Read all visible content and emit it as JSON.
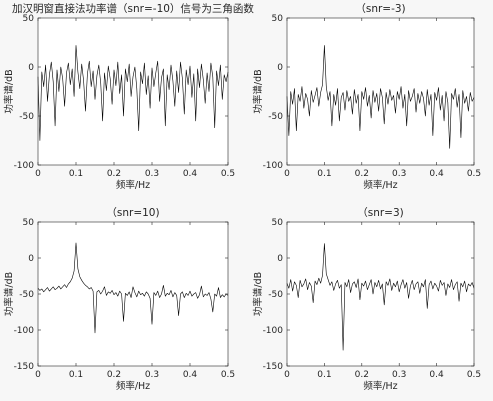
{
  "style": {
    "figure_background": "#f7f7f7",
    "axes_background": "#ffffff",
    "axis_color": "#262626"
  },
  "chart_data": [
    {
      "type": "line",
      "title": "加汉明窗直接法功率谱（snr=-10）信号为三角函数",
      "xlabel": "频率/Hz",
      "ylabel": "功率谱/dB",
      "xlim": [
        0,
        0.5
      ],
      "ylim": [
        -100,
        50
      ],
      "xticks": [
        0,
        0.1,
        0.2,
        0.3,
        0.4,
        0.5
      ],
      "xtick_labels": [
        "0",
        "0.1",
        "0.2",
        "0.3",
        "0.4",
        "0.5"
      ],
      "yticks": [
        50,
        0,
        -50,
        -100
      ],
      "ytick_labels": [
        "50",
        "0",
        "-50",
        "-100"
      ],
      "grid": false,
      "line_color": "#000000",
      "x": [
        0,
        0.005,
        0.01,
        0.015,
        0.02,
        0.025,
        0.03,
        0.035,
        0.04,
        0.045,
        0.05,
        0.055,
        0.06,
        0.065,
        0.07,
        0.075,
        0.08,
        0.085,
        0.09,
        0.095,
        0.1,
        0.105,
        0.11,
        0.115,
        0.12,
        0.125,
        0.13,
        0.135,
        0.14,
        0.145,
        0.15,
        0.155,
        0.16,
        0.165,
        0.17,
        0.175,
        0.18,
        0.185,
        0.19,
        0.195,
        0.2,
        0.205,
        0.21,
        0.215,
        0.22,
        0.225,
        0.23,
        0.235,
        0.24,
        0.245,
        0.25,
        0.255,
        0.26,
        0.265,
        0.27,
        0.275,
        0.28,
        0.285,
        0.29,
        0.295,
        0.3,
        0.305,
        0.31,
        0.315,
        0.32,
        0.325,
        0.33,
        0.335,
        0.34,
        0.345,
        0.35,
        0.355,
        0.36,
        0.365,
        0.37,
        0.375,
        0.38,
        0.385,
        0.39,
        0.395,
        0.4,
        0.405,
        0.41,
        0.415,
        0.42,
        0.425,
        0.43,
        0.435,
        0.44,
        0.445,
        0.45,
        0.455,
        0.46,
        0.465,
        0.47,
        0.475,
        0.48,
        0.485,
        0.49,
        0.495,
        0.5
      ],
      "y": [
        -10,
        -75,
        -5,
        -20,
        2,
        -35,
        -8,
        5,
        -15,
        -60,
        -3,
        -25,
        0,
        -12,
        -40,
        -6,
        4,
        -18,
        -2,
        -30,
        22,
        -5,
        -22,
        3,
        -14,
        -45,
        -7,
        6,
        -20,
        -4,
        -33,
        -9,
        2,
        -16,
        -55,
        -6,
        -24,
        1,
        -12,
        -38,
        -3,
        -19,
        5,
        -27,
        -8,
        -50,
        -2,
        -15,
        3,
        -30,
        -10,
        0,
        -22,
        -65,
        -5,
        -17,
        4,
        -28,
        -9,
        -42,
        -1,
        -20,
        -6,
        6,
        -35,
        -11,
        -2,
        -60,
        -8,
        -23,
        2,
        -14,
        -40,
        -4,
        -26,
        5,
        -12,
        -48,
        -3,
        -18,
        1,
        -31,
        -7,
        -55,
        -2,
        -21,
        3,
        -13,
        -37,
        -6,
        -25,
        4,
        -10,
        -62,
        -4,
        -19,
        2,
        -33,
        -8,
        -15,
        -5
      ]
    },
    {
      "type": "line",
      "title": "（snr=-3)",
      "xlabel": "频率/Hz",
      "ylabel": "功率谱/dB",
      "xlim": [
        0,
        0.5
      ],
      "ylim": [
        -100,
        50
      ],
      "xticks": [
        0,
        0.1,
        0.2,
        0.3,
        0.4,
        0.5
      ],
      "xtick_labels": [
        "0",
        "0.1",
        "0.2",
        "0.3",
        "0.4",
        "0.5"
      ],
      "yticks": [
        50,
        0,
        -50,
        -100
      ],
      "ytick_labels": [
        "50",
        "0",
        "-50",
        "-100"
      ],
      "grid": false,
      "line_color": "#000000",
      "x": [
        0,
        0.005,
        0.01,
        0.015,
        0.02,
        0.025,
        0.03,
        0.035,
        0.04,
        0.045,
        0.05,
        0.055,
        0.06,
        0.065,
        0.07,
        0.075,
        0.08,
        0.085,
        0.09,
        0.095,
        0.1,
        0.105,
        0.11,
        0.115,
        0.12,
        0.125,
        0.13,
        0.135,
        0.14,
        0.145,
        0.15,
        0.155,
        0.16,
        0.165,
        0.17,
        0.175,
        0.18,
        0.185,
        0.19,
        0.195,
        0.2,
        0.205,
        0.21,
        0.215,
        0.22,
        0.225,
        0.23,
        0.235,
        0.24,
        0.245,
        0.25,
        0.255,
        0.26,
        0.265,
        0.27,
        0.275,
        0.28,
        0.285,
        0.29,
        0.295,
        0.3,
        0.305,
        0.31,
        0.315,
        0.32,
        0.325,
        0.33,
        0.335,
        0.34,
        0.345,
        0.35,
        0.355,
        0.36,
        0.365,
        0.37,
        0.375,
        0.38,
        0.385,
        0.39,
        0.395,
        0.4,
        0.405,
        0.41,
        0.415,
        0.42,
        0.425,
        0.43,
        0.435,
        0.44,
        0.445,
        0.45,
        0.455,
        0.46,
        0.465,
        0.47,
        0.475,
        0.48,
        0.485,
        0.49,
        0.495,
        0.5
      ],
      "y": [
        -30,
        -70,
        -25,
        -38,
        -22,
        -65,
        -28,
        -35,
        -20,
        -42,
        -27,
        -33,
        -50,
        -24,
        -36,
        -29,
        -21,
        -40,
        -26,
        -18,
        22,
        -20,
        -34,
        -25,
        -60,
        -28,
        -39,
        -22,
        -55,
        -31,
        -26,
        -44,
        -24,
        -35,
        -30,
        -48,
        -23,
        -37,
        -28,
        -65,
        -25,
        -33,
        -21,
        -40,
        -29,
        -52,
        -24,
        -36,
        -27,
        -45,
        -22,
        -31,
        -58,
        -26,
        -38,
        -23,
        -34,
        -29,
        -47,
        -25,
        -33,
        -20,
        -42,
        -28,
        -60,
        -24,
        -35,
        -30,
        -22,
        -46,
        -27,
        -37,
        -25,
        -32,
        -50,
        -23,
        -39,
        -28,
        -70,
        -26,
        -34,
        -21,
        -44,
        -29,
        -55,
        -25,
        -36,
        -83,
        -27,
        -33,
        -22,
        -41,
        -28,
        -72,
        -24,
        -37,
        -30,
        -45,
        -26,
        -35,
        -31
      ]
    },
    {
      "type": "line",
      "title": "（snr=10)",
      "xlabel": "频率/Hz",
      "ylabel": "功率谱/dB",
      "xlim": [
        0,
        0.5
      ],
      "ylim": [
        -150,
        50
      ],
      "xticks": [
        0,
        0.1,
        0.2,
        0.3,
        0.4,
        0.5
      ],
      "xtick_labels": [
        "0",
        "0.1",
        "0.2",
        "0.3",
        "0.4",
        "0.5"
      ],
      "yticks": [
        50,
        0,
        -50,
        -100,
        -150
      ],
      "ytick_labels": [
        "50",
        "0",
        "-50",
        "-100",
        "-150"
      ],
      "grid": false,
      "line_color": "#000000",
      "x": [
        0,
        0.005,
        0.01,
        0.015,
        0.02,
        0.025,
        0.03,
        0.035,
        0.04,
        0.045,
        0.05,
        0.055,
        0.06,
        0.065,
        0.07,
        0.075,
        0.08,
        0.085,
        0.09,
        0.095,
        0.1,
        0.105,
        0.11,
        0.115,
        0.12,
        0.125,
        0.13,
        0.135,
        0.14,
        0.145,
        0.15,
        0.155,
        0.16,
        0.165,
        0.17,
        0.175,
        0.18,
        0.185,
        0.19,
        0.195,
        0.2,
        0.205,
        0.21,
        0.215,
        0.22,
        0.225,
        0.23,
        0.235,
        0.24,
        0.245,
        0.25,
        0.255,
        0.26,
        0.265,
        0.27,
        0.275,
        0.28,
        0.285,
        0.29,
        0.295,
        0.3,
        0.305,
        0.31,
        0.315,
        0.32,
        0.325,
        0.33,
        0.335,
        0.34,
        0.345,
        0.35,
        0.355,
        0.36,
        0.365,
        0.37,
        0.375,
        0.38,
        0.385,
        0.39,
        0.395,
        0.4,
        0.405,
        0.41,
        0.415,
        0.42,
        0.425,
        0.43,
        0.435,
        0.44,
        0.445,
        0.45,
        0.455,
        0.46,
        0.465,
        0.47,
        0.475,
        0.48,
        0.485,
        0.49,
        0.495,
        0.5
      ],
      "y": [
        -42,
        -45,
        -43,
        -47,
        -44,
        -41,
        -46,
        -43,
        -40,
        -44,
        -42,
        -39,
        -43,
        -40,
        -37,
        -41,
        -36,
        -33,
        -28,
        -18,
        21,
        -15,
        -26,
        -31,
        -35,
        -38,
        -40,
        -43,
        -41,
        -46,
        -104,
        -47,
        -45,
        -50,
        -46,
        -40,
        -52,
        -47,
        -49,
        -45,
        -51,
        -48,
        -53,
        -46,
        -50,
        -88,
        -49,
        -52,
        -47,
        -55,
        -40,
        -48,
        -54,
        -46,
        -51,
        -49,
        -53,
        -47,
        -50,
        -56,
        -92,
        -48,
        -52,
        -46,
        -55,
        -50,
        -38,
        -53,
        -49,
        -51,
        -45,
        -54,
        -48,
        -52,
        -80,
        -50,
        -47,
        -55,
        -49,
        -52,
        -46,
        -53,
        -50,
        -48,
        -56,
        -51,
        -39,
        -54,
        -50,
        -52,
        -48,
        -57,
        -75,
        -50,
        -53,
        -41,
        -55,
        -51,
        -54,
        -50,
        -52
      ]
    },
    {
      "type": "line",
      "title": "（snr=3)",
      "xlabel": "频率/Hz",
      "ylabel": "功率谱/dB",
      "xlim": [
        0,
        0.5
      ],
      "ylim": [
        -150,
        50
      ],
      "xticks": [
        0,
        0.1,
        0.2,
        0.3,
        0.4,
        0.5
      ],
      "xtick_labels": [
        "0",
        "0.1",
        "0.2",
        "0.3",
        "0.4",
        "0.5"
      ],
      "yticks": [
        50,
        0,
        -50,
        -100,
        -150
      ],
      "ytick_labels": [
        "50",
        "0",
        "-50",
        "-100",
        "-150"
      ],
      "grid": false,
      "line_color": "#000000",
      "x": [
        0,
        0.005,
        0.01,
        0.015,
        0.02,
        0.025,
        0.03,
        0.035,
        0.04,
        0.045,
        0.05,
        0.055,
        0.06,
        0.065,
        0.07,
        0.075,
        0.08,
        0.085,
        0.09,
        0.095,
        0.1,
        0.105,
        0.11,
        0.115,
        0.12,
        0.125,
        0.13,
        0.135,
        0.14,
        0.145,
        0.15,
        0.155,
        0.16,
        0.165,
        0.17,
        0.175,
        0.18,
        0.185,
        0.19,
        0.195,
        0.2,
        0.205,
        0.21,
        0.215,
        0.22,
        0.225,
        0.23,
        0.235,
        0.24,
        0.245,
        0.25,
        0.255,
        0.26,
        0.265,
        0.27,
        0.275,
        0.28,
        0.285,
        0.29,
        0.295,
        0.3,
        0.305,
        0.31,
        0.315,
        0.32,
        0.325,
        0.33,
        0.335,
        0.34,
        0.345,
        0.35,
        0.355,
        0.36,
        0.365,
        0.37,
        0.375,
        0.38,
        0.385,
        0.39,
        0.395,
        0.4,
        0.405,
        0.41,
        0.415,
        0.42,
        0.425,
        0.43,
        0.435,
        0.44,
        0.445,
        0.45,
        0.455,
        0.46,
        0.465,
        0.47,
        0.475,
        0.48,
        0.485,
        0.49,
        0.495,
        0.5
      ],
      "y": [
        -35,
        -42,
        -30,
        -46,
        -33,
        -38,
        -55,
        -31,
        -40,
        -36,
        -29,
        -44,
        -34,
        -39,
        -62,
        -32,
        -37,
        -28,
        -35,
        -24,
        20,
        -22,
        -30,
        -38,
        -33,
        -45,
        -36,
        -31,
        -42,
        -37,
        -128,
        -34,
        -40,
        -30,
        -48,
        -36,
        -33,
        -41,
        -29,
        -58,
        -35,
        -39,
        -32,
        -44,
        -37,
        -30,
        -50,
        -34,
        -40,
        -31,
        -43,
        -36,
        -65,
        -33,
        -38,
        -29,
        -45,
        -35,
        -40,
        -32,
        -47,
        -37,
        -30,
        -42,
        -34,
        -56,
        -39,
        -31,
        -44,
        -36,
        -33,
        -49,
        -35,
        -40,
        -30,
        -70,
        -37,
        -32,
        -43,
        -35,
        -39,
        -46,
        -31,
        -38,
        -34,
        -52,
        -36,
        -41,
        -30,
        -44,
        -37,
        -33,
        -60,
        -35,
        -40,
        -32,
        -47,
        -36,
        -39,
        -34,
        -42
      ]
    }
  ]
}
